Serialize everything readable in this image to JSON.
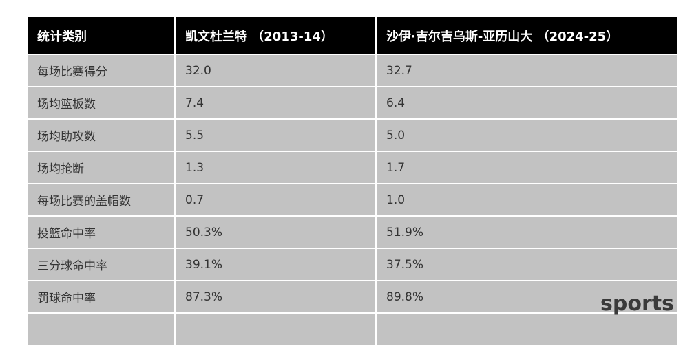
{
  "table": {
    "header": [
      "统计类别",
      "凯文杜兰特 （2013-14）",
      "沙伊·吉尔吉乌斯-亚历山大 （2024-25）"
    ],
    "rows": [
      [
        "每场比赛得分",
        "32.0",
        "32.7"
      ],
      [
        "场均篮板数",
        "7.4",
        "6.4"
      ],
      [
        "场均助攻数",
        "5.5",
        "5.0"
      ],
      [
        "场均抢断",
        "1.3",
        "1.7"
      ],
      [
        "每场比赛的盖帽数",
        "0.7",
        "1.0"
      ],
      [
        "投篮命中率",
        "50.3%",
        "51.9%"
      ],
      [
        "三分球命中率",
        "39.1%",
        "37.5%"
      ],
      [
        "罚球命中率",
        "87.3%",
        "89.8%"
      ]
    ]
  },
  "watermark": "sports"
}
